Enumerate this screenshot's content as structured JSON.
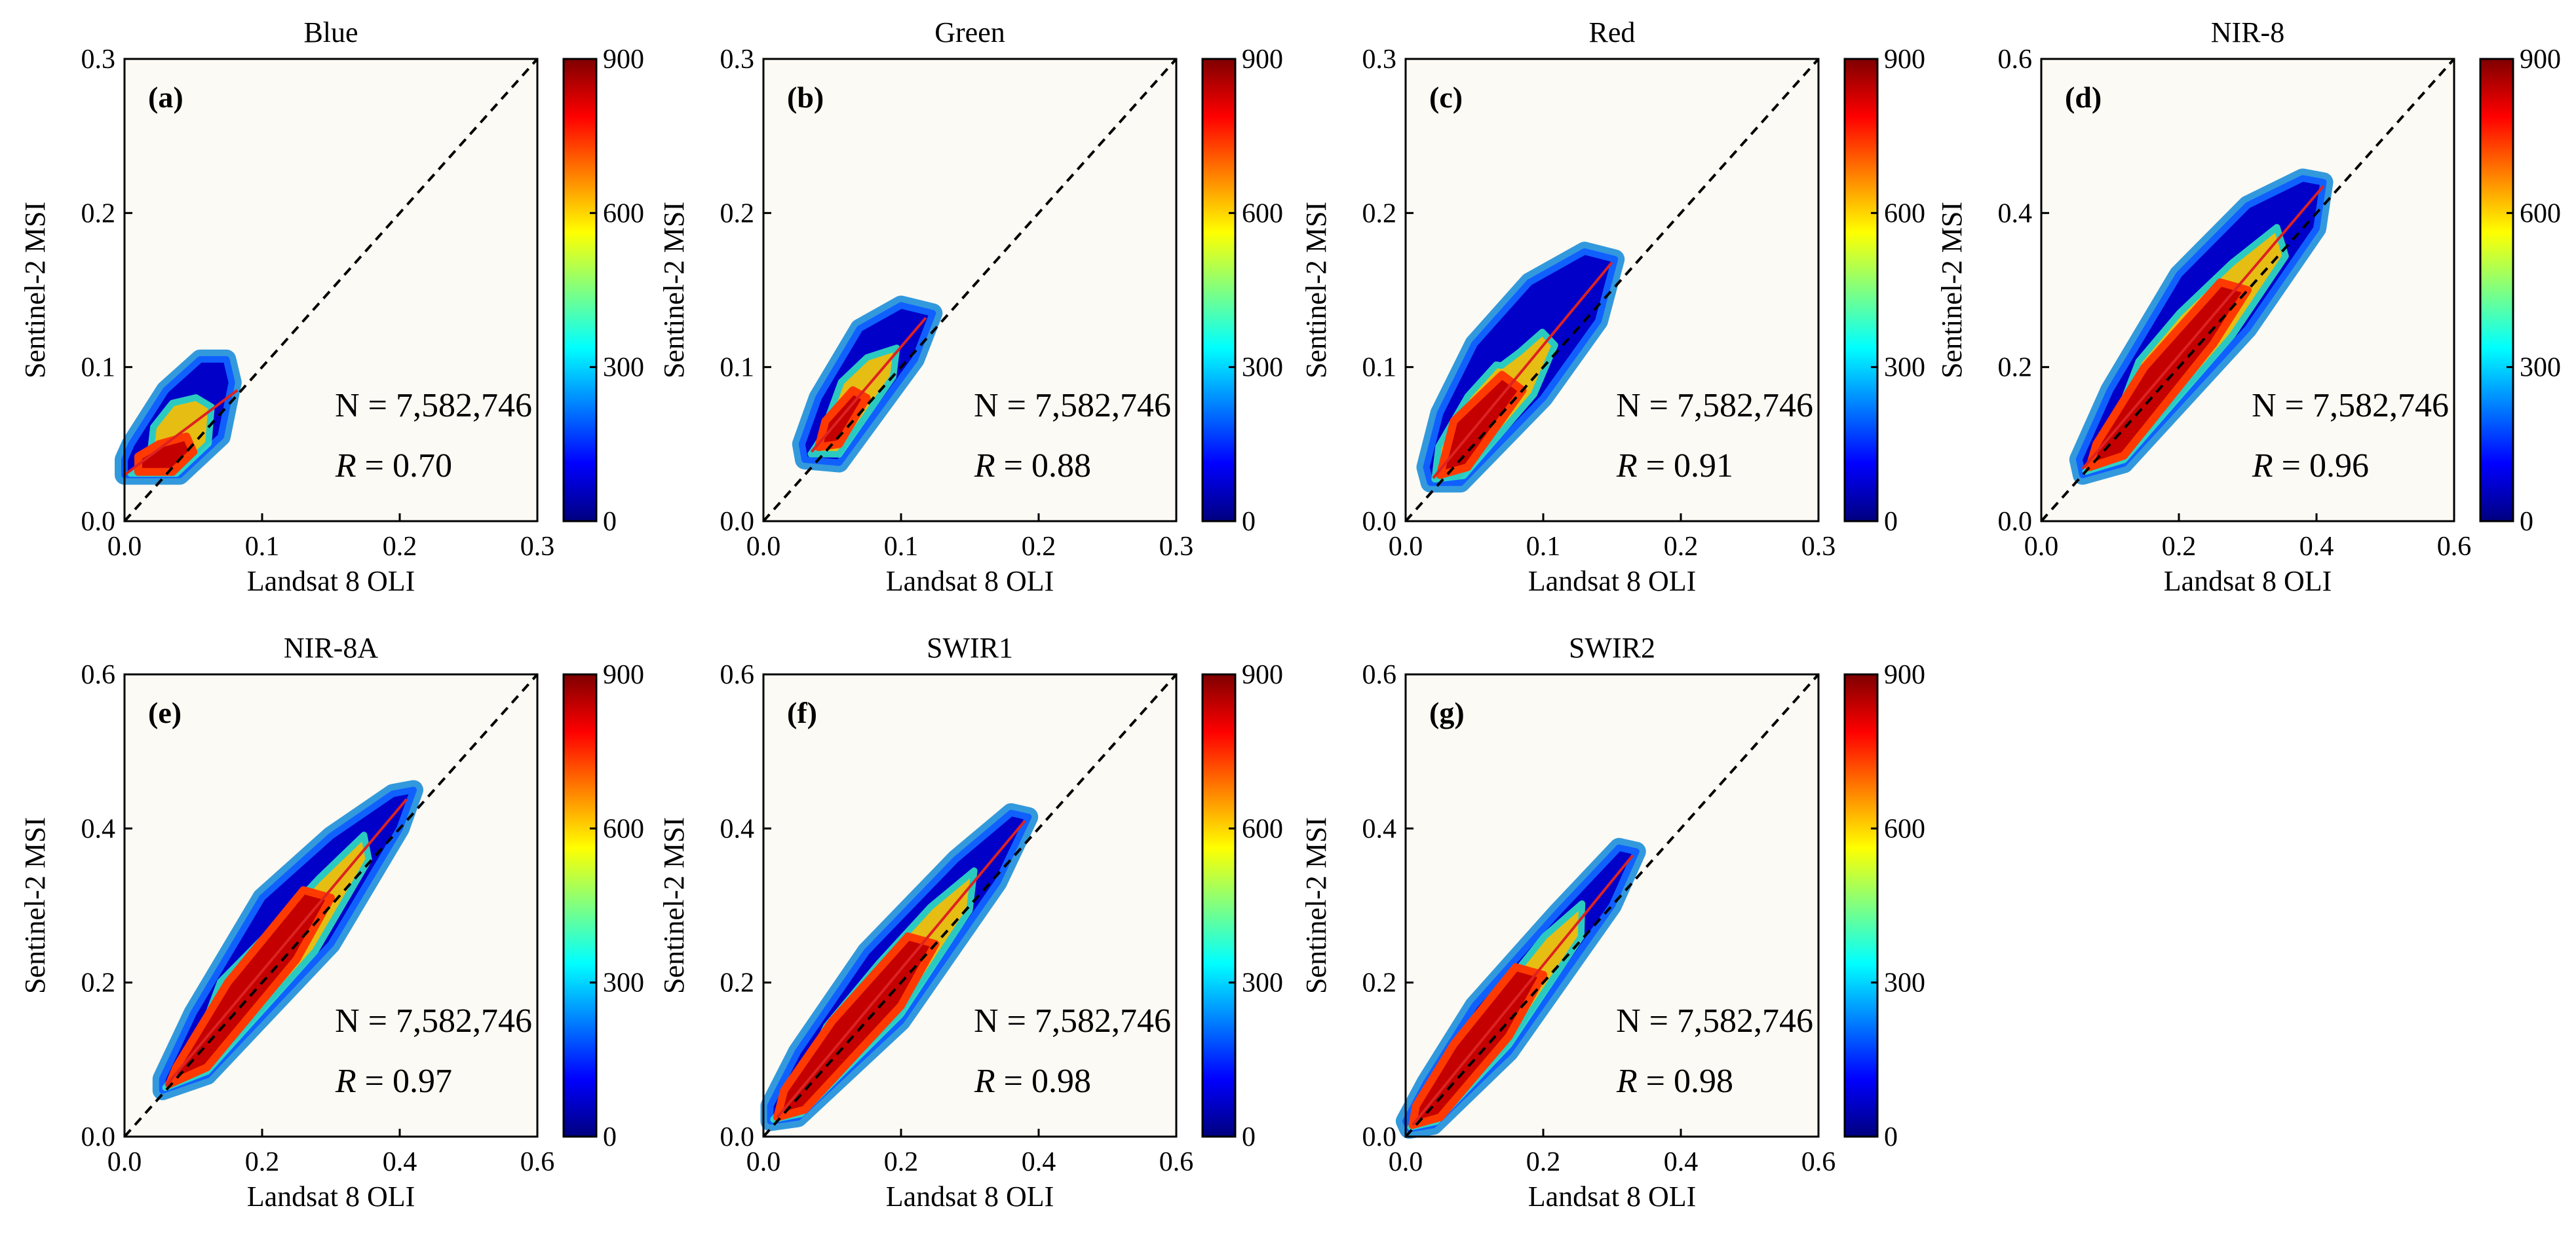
{
  "figure": {
    "colormap_stops": [
      "#00007f",
      "#0000ff",
      "#0080ff",
      "#00ffff",
      "#80ff80",
      "#ffff00",
      "#ff8000",
      "#ff0000",
      "#7f0000"
    ],
    "plot_background": "#fbfaf4",
    "point_edge_color": "#3399dd",
    "fit_line_color": "#dd2222"
  },
  "chart_data": [
    {
      "type": "scatter",
      "letter": "(a)",
      "title": "Blue",
      "xlabel": "Landsat 8 OLI",
      "ylabel": "Sentinel-2 MSI",
      "xlim": [
        0,
        0.3
      ],
      "ylim": [
        0,
        0.3
      ],
      "xticks": [
        "0.0",
        "0.1",
        "0.2",
        "0.3"
      ],
      "yticks": [
        "0.0",
        "0.1",
        "0.2",
        "0.3"
      ],
      "n_text": "N = 7,582,746",
      "r_label": "R",
      "r_text": " = 0.70",
      "colorbar": {
        "min": 0,
        "max": 900,
        "ticks": [
          "0",
          "300",
          "600",
          "900"
        ]
      },
      "density_outline": [
        [
          0.0,
          0.03
        ],
        [
          0.04,
          0.03
        ],
        [
          0.07,
          0.055
        ],
        [
          0.078,
          0.09
        ],
        [
          0.074,
          0.105
        ],
        [
          0.055,
          0.105
        ],
        [
          0.03,
          0.085
        ],
        [
          0.005,
          0.05
        ],
        [
          0.0,
          0.04
        ]
      ],
      "core_outline": [
        [
          0.01,
          0.032
        ],
        [
          0.035,
          0.032
        ],
        [
          0.05,
          0.045
        ],
        [
          0.045,
          0.055
        ],
        [
          0.025,
          0.05
        ],
        [
          0.01,
          0.042
        ]
      ],
      "fit_line": [
        [
          0.0,
          0.03
        ],
        [
          0.082,
          0.085
        ]
      ],
      "one_to_one": [
        [
          0,
          0
        ],
        [
          0.3,
          0.3
        ]
      ]
    },
    {
      "type": "scatter",
      "letter": "(b)",
      "title": "Green",
      "xlabel": "Landsat 8 OLI",
      "ylabel": "Sentinel-2 MSI",
      "xlim": [
        0,
        0.3
      ],
      "ylim": [
        0,
        0.3
      ],
      "xticks": [
        "0.0",
        "0.1",
        "0.2",
        "0.3"
      ],
      "yticks": [
        "0.0",
        "0.1",
        "0.2",
        "0.3"
      ],
      "n_text": "N = 7,582,746",
      "r_label": "R",
      "r_text": " = 0.88",
      "colorbar": {
        "min": 0,
        "max": 900,
        "ticks": [
          "0",
          "300",
          "600",
          "900"
        ]
      },
      "density_outline": [
        [
          0.03,
          0.04
        ],
        [
          0.055,
          0.038
        ],
        [
          0.11,
          0.105
        ],
        [
          0.123,
          0.135
        ],
        [
          0.1,
          0.14
        ],
        [
          0.07,
          0.125
        ],
        [
          0.04,
          0.08
        ],
        [
          0.028,
          0.05
        ]
      ],
      "core_outline": [
        [
          0.04,
          0.048
        ],
        [
          0.055,
          0.05
        ],
        [
          0.075,
          0.08
        ],
        [
          0.065,
          0.085
        ],
        [
          0.045,
          0.065
        ]
      ],
      "fit_line": [
        [
          0.035,
          0.045
        ],
        [
          0.118,
          0.132
        ]
      ],
      "one_to_one": [
        [
          0,
          0
        ],
        [
          0.3,
          0.3
        ]
      ]
    },
    {
      "type": "scatter",
      "letter": "(c)",
      "title": "Red",
      "xlabel": "Landsat 8 OLI",
      "ylabel": "Sentinel-2 MSI",
      "xlim": [
        0,
        0.3
      ],
      "ylim": [
        0,
        0.3
      ],
      "xticks": [
        "0.0",
        "0.1",
        "0.2",
        "0.3"
      ],
      "yticks": [
        "0.0",
        "0.1",
        "0.2",
        "0.3"
      ],
      "n_text": "N = 7,582,746",
      "r_label": "R",
      "r_text": " = 0.91",
      "colorbar": {
        "min": 0,
        "max": 900,
        "ticks": [
          "0",
          "300",
          "600",
          "900"
        ]
      },
      "density_outline": [
        [
          0.018,
          0.025
        ],
        [
          0.04,
          0.025
        ],
        [
          0.1,
          0.08
        ],
        [
          0.14,
          0.13
        ],
        [
          0.152,
          0.17
        ],
        [
          0.13,
          0.175
        ],
        [
          0.09,
          0.155
        ],
        [
          0.05,
          0.115
        ],
        [
          0.025,
          0.07
        ],
        [
          0.015,
          0.035
        ]
      ],
      "core_outline": [
        [
          0.025,
          0.03
        ],
        [
          0.045,
          0.035
        ],
        [
          0.085,
          0.085
        ],
        [
          0.07,
          0.095
        ],
        [
          0.035,
          0.065
        ]
      ],
      "fit_line": [
        [
          0.02,
          0.028
        ],
        [
          0.15,
          0.168
        ]
      ],
      "one_to_one": [
        [
          0,
          0
        ],
        [
          0.3,
          0.3
        ]
      ]
    },
    {
      "type": "scatter",
      "letter": "(d)",
      "title": "NIR-8",
      "xlabel": "Landsat 8 OLI",
      "ylabel": "Sentinel-2 MSI",
      "xlim": [
        0,
        0.6
      ],
      "ylim": [
        0,
        0.6
      ],
      "xticks": [
        "0.0",
        "0.2",
        "0.4",
        "0.6"
      ],
      "yticks": [
        "0.0",
        "0.2",
        "0.4",
        "0.6"
      ],
      "n_text": "N = 7,582,746",
      "r_label": "R",
      "r_text": " = 0.96",
      "colorbar": {
        "min": 0,
        "max": 900,
        "ticks": [
          "0",
          "300",
          "600",
          "900"
        ]
      },
      "density_outline": [
        [
          0.06,
          0.06
        ],
        [
          0.12,
          0.075
        ],
        [
          0.3,
          0.25
        ],
        [
          0.4,
          0.38
        ],
        [
          0.41,
          0.44
        ],
        [
          0.38,
          0.445
        ],
        [
          0.3,
          0.41
        ],
        [
          0.2,
          0.32
        ],
        [
          0.1,
          0.17
        ],
        [
          0.055,
          0.08
        ]
      ],
      "core_outline": [
        [
          0.07,
          0.07
        ],
        [
          0.12,
          0.085
        ],
        [
          0.25,
          0.23
        ],
        [
          0.3,
          0.3
        ],
        [
          0.26,
          0.31
        ],
        [
          0.15,
          0.2
        ],
        [
          0.08,
          0.1
        ]
      ],
      "fit_line": [
        [
          0.06,
          0.068
        ],
        [
          0.41,
          0.435
        ]
      ],
      "one_to_one": [
        [
          0,
          0
        ],
        [
          0.6,
          0.6
        ]
      ]
    },
    {
      "type": "scatter",
      "letter": "(e)",
      "title": "NIR-8A",
      "xlabel": "Landsat 8 OLI",
      "ylabel": "Sentinel-2 MSI",
      "xlim": [
        0,
        0.6
      ],
      "ylim": [
        0,
        0.6
      ],
      "xticks": [
        "0.0",
        "0.2",
        "0.4",
        "0.6"
      ],
      "yticks": [
        "0.0",
        "0.2",
        "0.4",
        "0.6"
      ],
      "n_text": "N = 7,582,746",
      "r_label": "R",
      "r_text": " = 0.97",
      "colorbar": {
        "min": 0,
        "max": 900,
        "ticks": [
          "0",
          "300",
          "600",
          "900"
        ]
      },
      "density_outline": [
        [
          0.055,
          0.06
        ],
        [
          0.12,
          0.08
        ],
        [
          0.3,
          0.25
        ],
        [
          0.4,
          0.4
        ],
        [
          0.42,
          0.45
        ],
        [
          0.39,
          0.445
        ],
        [
          0.3,
          0.39
        ],
        [
          0.2,
          0.31
        ],
        [
          0.1,
          0.16
        ],
        [
          0.055,
          0.075
        ]
      ],
      "core_outline": [
        [
          0.065,
          0.068
        ],
        [
          0.12,
          0.09
        ],
        [
          0.25,
          0.23
        ],
        [
          0.3,
          0.31
        ],
        [
          0.26,
          0.32
        ],
        [
          0.15,
          0.2
        ],
        [
          0.075,
          0.09
        ]
      ],
      "fit_line": [
        [
          0.06,
          0.066
        ],
        [
          0.41,
          0.438
        ]
      ],
      "one_to_one": [
        [
          0,
          0
        ],
        [
          0.6,
          0.6
        ]
      ]
    },
    {
      "type": "scatter",
      "letter": "(f)",
      "title": "SWIR1",
      "xlabel": "Landsat 8 OLI",
      "ylabel": "Sentinel-2 MSI",
      "xlim": [
        0,
        0.6
      ],
      "ylim": [
        0,
        0.6
      ],
      "xticks": [
        "0.0",
        "0.2",
        "0.4",
        "0.6"
      ],
      "yticks": [
        "0.0",
        "0.2",
        "0.4",
        "0.6"
      ],
      "n_text": "N = 7,582,746",
      "r_label": "R",
      "r_text": " = 0.98",
      "colorbar": {
        "min": 0,
        "max": 900,
        "ticks": [
          "0",
          "300",
          "600",
          "900"
        ]
      },
      "density_outline": [
        [
          0.01,
          0.02
        ],
        [
          0.05,
          0.025
        ],
        [
          0.2,
          0.15
        ],
        [
          0.34,
          0.33
        ],
        [
          0.385,
          0.415
        ],
        [
          0.36,
          0.42
        ],
        [
          0.28,
          0.36
        ],
        [
          0.15,
          0.24
        ],
        [
          0.05,
          0.11
        ],
        [
          0.01,
          0.04
        ]
      ],
      "core_outline": [
        [
          0.02,
          0.025
        ],
        [
          0.06,
          0.035
        ],
        [
          0.2,
          0.17
        ],
        [
          0.25,
          0.25
        ],
        [
          0.21,
          0.26
        ],
        [
          0.1,
          0.15
        ],
        [
          0.03,
          0.06
        ]
      ],
      "fit_line": [
        [
          0.02,
          0.025
        ],
        [
          0.38,
          0.41
        ]
      ],
      "one_to_one": [
        [
          0,
          0
        ],
        [
          0.6,
          0.6
        ]
      ]
    },
    {
      "type": "scatter",
      "letter": "(g)",
      "title": "SWIR2",
      "xlabel": "Landsat 8 OLI",
      "ylabel": "Sentinel-2 MSI",
      "xlim": [
        0,
        0.6
      ],
      "ylim": [
        0,
        0.6
      ],
      "xticks": [
        "0.0",
        "0.2",
        "0.4",
        "0.6"
      ],
      "yticks": [
        "0.0",
        "0.2",
        "0.4",
        "0.6"
      ],
      "n_text": "N = 7,582,746",
      "r_label": "R",
      "r_text": " = 0.98",
      "colorbar": {
        "min": 0,
        "max": 900,
        "ticks": [
          "0",
          "300",
          "600",
          "900"
        ]
      },
      "density_outline": [
        [
          0.005,
          0.01
        ],
        [
          0.04,
          0.015
        ],
        [
          0.15,
          0.11
        ],
        [
          0.3,
          0.3
        ],
        [
          0.335,
          0.37
        ],
        [
          0.31,
          0.375
        ],
        [
          0.22,
          0.29
        ],
        [
          0.1,
          0.17
        ],
        [
          0.03,
          0.07
        ],
        [
          0.0,
          0.02
        ]
      ],
      "core_outline": [
        [
          0.01,
          0.015
        ],
        [
          0.05,
          0.025
        ],
        [
          0.15,
          0.13
        ],
        [
          0.2,
          0.21
        ],
        [
          0.16,
          0.22
        ],
        [
          0.07,
          0.12
        ],
        [
          0.015,
          0.04
        ]
      ],
      "fit_line": [
        [
          0.01,
          0.015
        ],
        [
          0.33,
          0.365
        ]
      ],
      "one_to_one": [
        [
          0,
          0
        ],
        [
          0.6,
          0.6
        ]
      ]
    }
  ]
}
